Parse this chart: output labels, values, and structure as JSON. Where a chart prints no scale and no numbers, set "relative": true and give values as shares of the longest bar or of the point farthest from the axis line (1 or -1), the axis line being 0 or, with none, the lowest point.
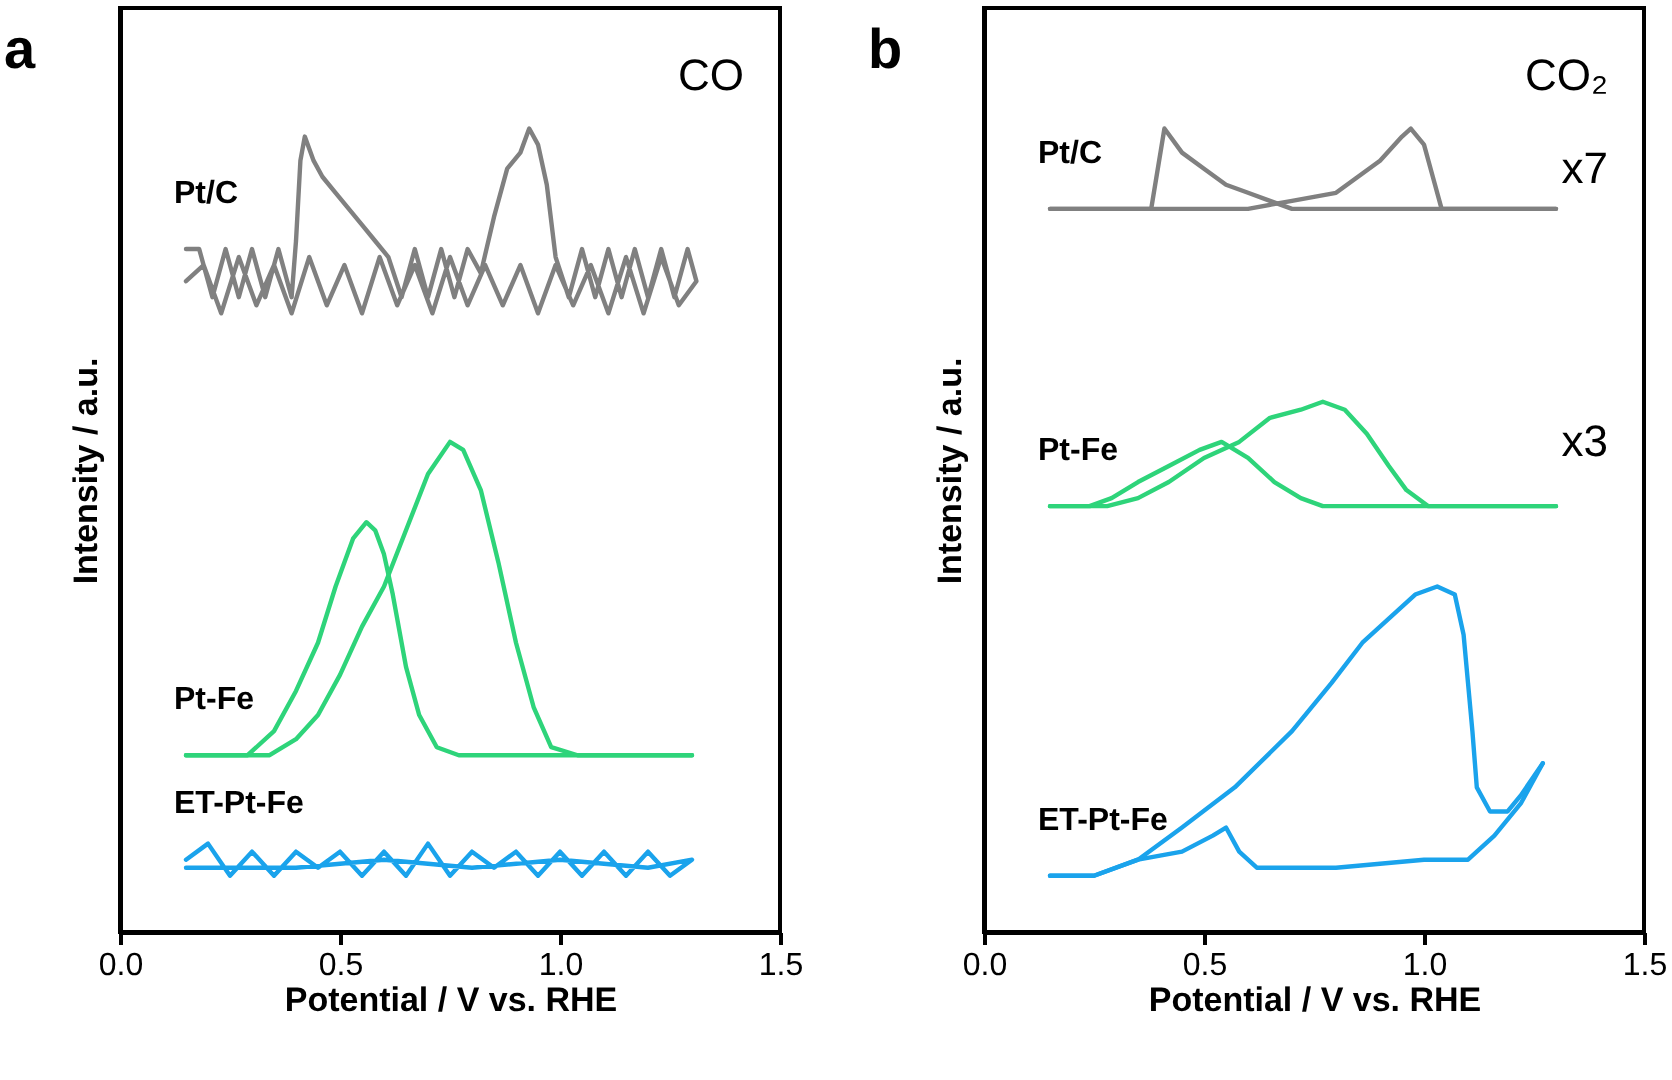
{
  "chart_data": [
    {
      "type": "line",
      "relative": true,
      "xlabel": "Potential / V vs. RHE",
      "ylabel": "Intensity / a.u.",
      "xlim": [
        0,
        1.5
      ],
      "xticks": [
        {
          "value": 0,
          "label": "0.0"
        },
        {
          "value": 0.5,
          "label": "0.5"
        },
        {
          "value": 1,
          "label": "1.0"
        },
        {
          "value": 1.5,
          "label": "1.5"
        }
      ],
      "annotations": [
        "a",
        "CO"
      ],
      "series": [
        {
          "name": "Pt/C",
          "color": "#808080",
          "x": [
            0.15,
            0.18,
            0.21,
            0.24,
            0.27,
            0.3,
            0.33,
            0.36,
            0.39,
            0.4,
            0.41,
            0.42,
            0.44,
            0.46,
            0.49,
            0.52,
            0.55,
            0.58,
            0.61,
            0.64,
            0.67,
            0.7,
            0.73,
            0.76,
            0.79,
            0.82,
            0.85,
            0.88,
            0.91,
            0.93,
            0.95,
            0.97,
            0.99,
            1.02,
            1.05,
            1.08,
            1.11,
            1.14,
            1.17,
            1.2,
            1.23,
            1.26,
            1.29,
            1.31,
            1.27,
            1.23,
            1.19,
            1.15,
            1.11,
            1.07,
            1.03,
            0.99,
            0.95,
            0.91,
            0.87,
            0.83,
            0.79,
            0.75,
            0.71,
            0.67,
            0.63,
            0.59,
            0.55,
            0.51,
            0.47,
            0.43,
            0.39,
            0.35,
            0.31,
            0.27,
            0.23,
            0.19,
            0.15
          ],
          "values": [
            0.85,
            0.85,
            0.79,
            0.85,
            0.79,
            0.85,
            0.79,
            0.85,
            0.79,
            0.86,
            0.96,
            0.99,
            0.96,
            0.94,
            0.92,
            0.9,
            0.88,
            0.86,
            0.84,
            0.79,
            0.85,
            0.79,
            0.85,
            0.79,
            0.85,
            0.82,
            0.89,
            0.95,
            0.97,
            1.0,
            0.98,
            0.93,
            0.84,
            0.79,
            0.85,
            0.79,
            0.85,
            0.79,
            0.85,
            0.79,
            0.85,
            0.79,
            0.85,
            0.81,
            0.78,
            0.84,
            0.77,
            0.84,
            0.77,
            0.83,
            0.78,
            0.83,
            0.77,
            0.83,
            0.78,
            0.83,
            0.78,
            0.84,
            0.77,
            0.83,
            0.78,
            0.84,
            0.77,
            0.83,
            0.78,
            0.84,
            0.77,
            0.83,
            0.78,
            0.84,
            0.77,
            0.83,
            0.81
          ]
        },
        {
          "name": "Pt-Fe",
          "color": "#2ed47a",
          "x": [
            0.15,
            0.34,
            0.4,
            0.45,
            0.5,
            0.55,
            0.6,
            0.65,
            0.7,
            0.75,
            0.78,
            0.82,
            0.86,
            0.9,
            0.94,
            0.98,
            1.04,
            1.3
          ],
          "values": [
            0.22,
            0.22,
            0.24,
            0.27,
            0.32,
            0.38,
            0.43,
            0.5,
            0.57,
            0.61,
            0.6,
            0.55,
            0.46,
            0.36,
            0.28,
            0.23,
            0.22,
            0.22
          ]
        },
        {
          "color": "#2ed47a",
          "x": [
            0.15,
            0.29,
            0.35,
            0.4,
            0.45,
            0.49,
            0.53,
            0.56,
            0.58,
            0.6,
            0.62,
            0.65,
            0.68,
            0.72,
            0.77,
            1.3
          ],
          "values": [
            0.22,
            0.22,
            0.25,
            0.3,
            0.36,
            0.43,
            0.49,
            0.51,
            0.5,
            0.47,
            0.42,
            0.33,
            0.27,
            0.23,
            0.22,
            0.22
          ]
        },
        {
          "name": "ET-Pt-Fe",
          "color": "#1aa3ec",
          "x": [
            0.15,
            0.2,
            0.25,
            0.3,
            0.35,
            0.4,
            0.45,
            0.5,
            0.55,
            0.6,
            0.65,
            0.7,
            0.75,
            0.8,
            0.85,
            0.9,
            0.95,
            1.0,
            1.05,
            1.1,
            1.15,
            1.2,
            1.25,
            1.3,
            1.2,
            1.0,
            0.8,
            0.6,
            0.4,
            0.15
          ],
          "values": [
            0.09,
            0.11,
            0.07,
            0.1,
            0.07,
            0.1,
            0.08,
            0.1,
            0.07,
            0.1,
            0.07,
            0.11,
            0.07,
            0.1,
            0.08,
            0.1,
            0.07,
            0.1,
            0.07,
            0.1,
            0.07,
            0.1,
            0.07,
            0.09,
            0.08,
            0.09,
            0.08,
            0.09,
            0.08,
            0.08
          ]
        }
      ]
    },
    {
      "type": "line",
      "relative": true,
      "xlabel": "Potential / V vs. RHE",
      "ylabel": "Intensity / a.u.",
      "xlim": [
        0,
        1.5
      ],
      "xticks": [
        {
          "value": 0,
          "label": "0.0"
        },
        {
          "value": 0.5,
          "label": "0.5"
        },
        {
          "value": 1,
          "label": "1.0"
        },
        {
          "value": 1.5,
          "label": "1.5"
        }
      ],
      "annotations": [
        "b",
        "CO₂",
        "x7",
        "x3"
      ],
      "series": [
        {
          "name": "Pt/C",
          "color": "#808080",
          "x": [
            0.15,
            0.25,
            0.38,
            0.41,
            0.45,
            0.5,
            0.55,
            0.6,
            0.65,
            0.7,
            0.8,
            0.9,
            1.0,
            1.1,
            1.2,
            1.3
          ],
          "values": [
            0.9,
            0.9,
            0.9,
            1.0,
            0.97,
            0.95,
            0.93,
            0.92,
            0.91,
            0.9,
            0.9,
            0.9,
            0.9,
            0.9,
            0.9,
            0.9
          ]
        },
        {
          "color": "#808080",
          "x": [
            0.15,
            0.3,
            0.4,
            0.5,
            0.6,
            0.7,
            0.8,
            0.9,
            0.95,
            0.97,
            1.0,
            1.02,
            1.04,
            1.2,
            1.3
          ],
          "values": [
            0.9,
            0.9,
            0.9,
            0.9,
            0.9,
            0.91,
            0.92,
            0.96,
            0.99,
            1.0,
            0.98,
            0.94,
            0.9,
            0.9,
            0.9
          ]
        },
        {
          "name": "Pt-Fe",
          "color": "#2ed47a",
          "x": [
            0.15,
            0.28,
            0.35,
            0.42,
            0.5,
            0.58,
            0.65,
            0.72,
            0.77,
            0.82,
            0.87,
            0.92,
            0.96,
            1.01,
            1.3
          ],
          "values": [
            0.53,
            0.53,
            0.54,
            0.56,
            0.59,
            0.61,
            0.64,
            0.65,
            0.66,
            0.65,
            0.62,
            0.58,
            0.55,
            0.53,
            0.53
          ]
        },
        {
          "color": "#2ed47a",
          "x": [
            0.15,
            0.24,
            0.29,
            0.35,
            0.42,
            0.49,
            0.54,
            0.57,
            0.6,
            0.66,
            0.72,
            0.77,
            1.3
          ],
          "values": [
            0.53,
            0.53,
            0.54,
            0.56,
            0.58,
            0.6,
            0.61,
            0.6,
            0.59,
            0.56,
            0.54,
            0.53,
            0.53
          ]
        },
        {
          "name": "ET-Pt-Fe",
          "color": "#1aa3ec",
          "x": [
            0.15,
            0.25,
            0.35,
            0.45,
            0.52,
            0.55,
            0.58,
            0.62,
            0.8,
            1.0,
            1.1,
            1.16,
            1.22,
            1.27
          ],
          "values": [
            0.07,
            0.07,
            0.09,
            0.1,
            0.12,
            0.13,
            0.1,
            0.08,
            0.08,
            0.09,
            0.09,
            0.12,
            0.16,
            0.21
          ]
        },
        {
          "color": "#1aa3ec",
          "x": [
            0.15,
            0.25,
            0.35,
            0.45,
            0.57,
            0.7,
            0.79,
            0.86,
            0.94,
            0.98,
            1.03,
            1.07,
            1.09,
            1.1,
            1.11,
            1.12,
            1.15,
            1.19,
            1.22,
            1.27
          ],
          "values": [
            0.07,
            0.07,
            0.09,
            0.13,
            0.18,
            0.25,
            0.31,
            0.36,
            0.4,
            0.42,
            0.43,
            0.42,
            0.37,
            0.31,
            0.25,
            0.18,
            0.15,
            0.15,
            0.17,
            0.21
          ]
        }
      ]
    }
  ]
}
